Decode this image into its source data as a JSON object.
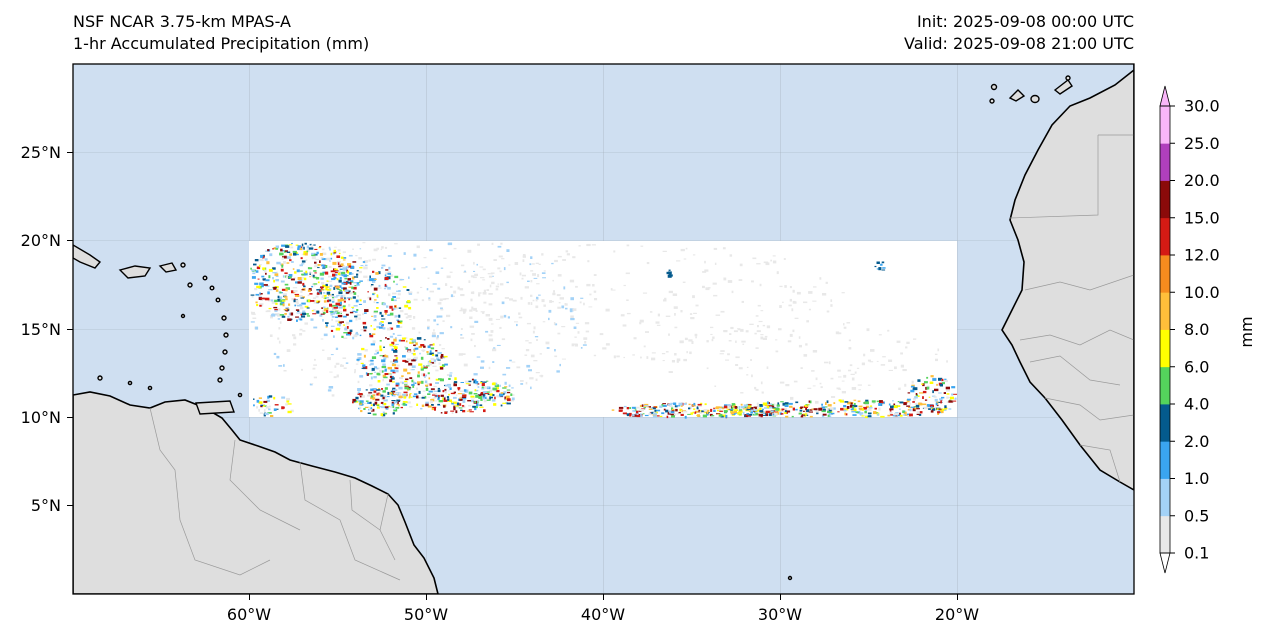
{
  "header": {
    "model": "NSF NCAR 3.75-km MPAS-A",
    "field": "1-hr Accumulated Precipitation (mm)",
    "init": "Init: 2025-09-08 00:00 UTC",
    "valid": "Valid: 2025-09-08 21:00 UTC"
  },
  "map": {
    "lon_range": [
      -70,
      -10
    ],
    "lat_range": [
      0,
      30
    ],
    "ocean_color": "#cfdff1",
    "land_color": "#dedede",
    "domain_box": {
      "lon": [
        -60,
        -20
      ],
      "lat": [
        10,
        20
      ],
      "fill": "#ffffff"
    },
    "x_ticks": [
      "60°W",
      "50°W",
      "40°W",
      "30°W",
      "20°W"
    ],
    "y_ticks": [
      "25°N",
      "20°N",
      "15°N",
      "10°N",
      "5°N"
    ],
    "gridlines": true
  },
  "colorbar": {
    "unit": "mm",
    "levels": [
      "0.1",
      "0.5",
      "1.0",
      "2.0",
      "4.0",
      "6.0",
      "8.0",
      "10.0",
      "12.0",
      "15.0",
      "20.0",
      "25.0",
      "30.0"
    ],
    "colors": [
      "#e8e8e8",
      "#a3d2f7",
      "#3aa5f0",
      "#045a8d",
      "#54d35c",
      "#ffff00",
      "#ffbf3a",
      "#f58c1e",
      "#d41a14",
      "#8b0a0a",
      "#b03fbd",
      "#f9b6f9"
    ],
    "extend": "both"
  }
}
